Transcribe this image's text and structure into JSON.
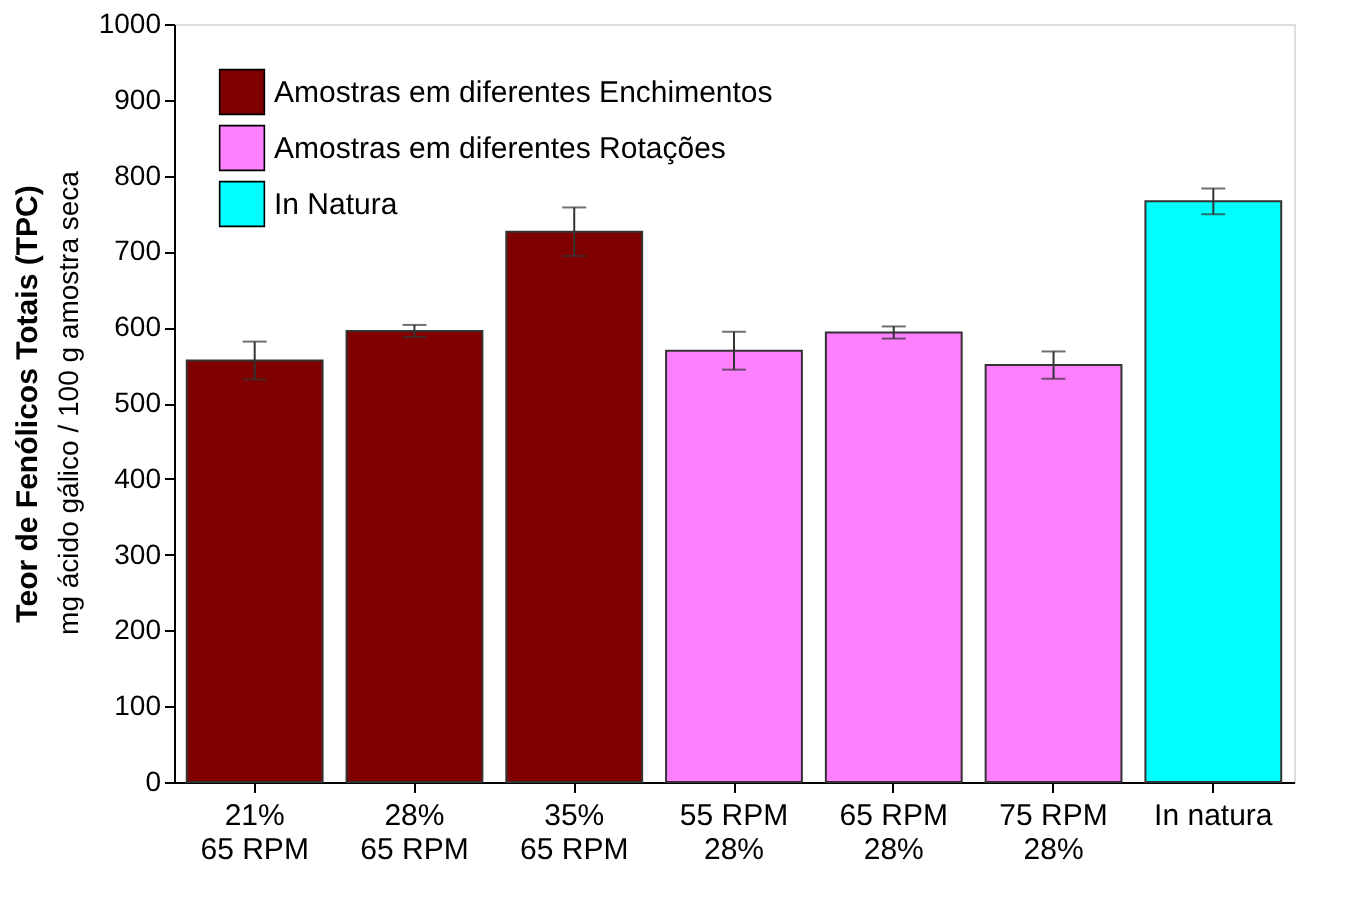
{
  "chart_data": {
    "type": "bar",
    "ylabel": "Teor de Fenólicos Totais (TPC)\nmg ácido gálico / 100 g amostra seca",
    "categories": [
      "21%\n65 RPM",
      "28%\n65 RPM",
      "35%\n65 RPM",
      "55 RPM\n28%",
      "65 RPM\n28%",
      "75 RPM\n28%",
      "In natura"
    ],
    "series": [
      {
        "name": "Amostras em diferentes Enchimentos",
        "color": "#800000",
        "values": [
          556,
          595,
          726,
          null,
          null,
          null,
          null
        ],
        "errors": [
          25,
          8,
          32,
          null,
          null,
          null,
          null
        ]
      },
      {
        "name": "Amostras em diferentes Rotações",
        "color": "#ff80ff",
        "values": [
          null,
          null,
          null,
          569,
          593,
          550,
          null
        ],
        "errors": [
          null,
          null,
          null,
          25,
          8,
          18,
          null
        ]
      },
      {
        "name": "In Natura",
        "color": "#00ffff",
        "values": [
          null,
          null,
          null,
          null,
          null,
          null,
          766
        ],
        "errors": [
          null,
          null,
          null,
          null,
          null,
          null,
          17
        ]
      }
    ],
    "ylim": [
      0,
      1000
    ],
    "yticks": [
      0,
      100,
      200,
      300,
      400,
      500,
      600,
      700,
      800,
      900,
      1000
    ],
    "grid": false,
    "legend": "top left"
  }
}
